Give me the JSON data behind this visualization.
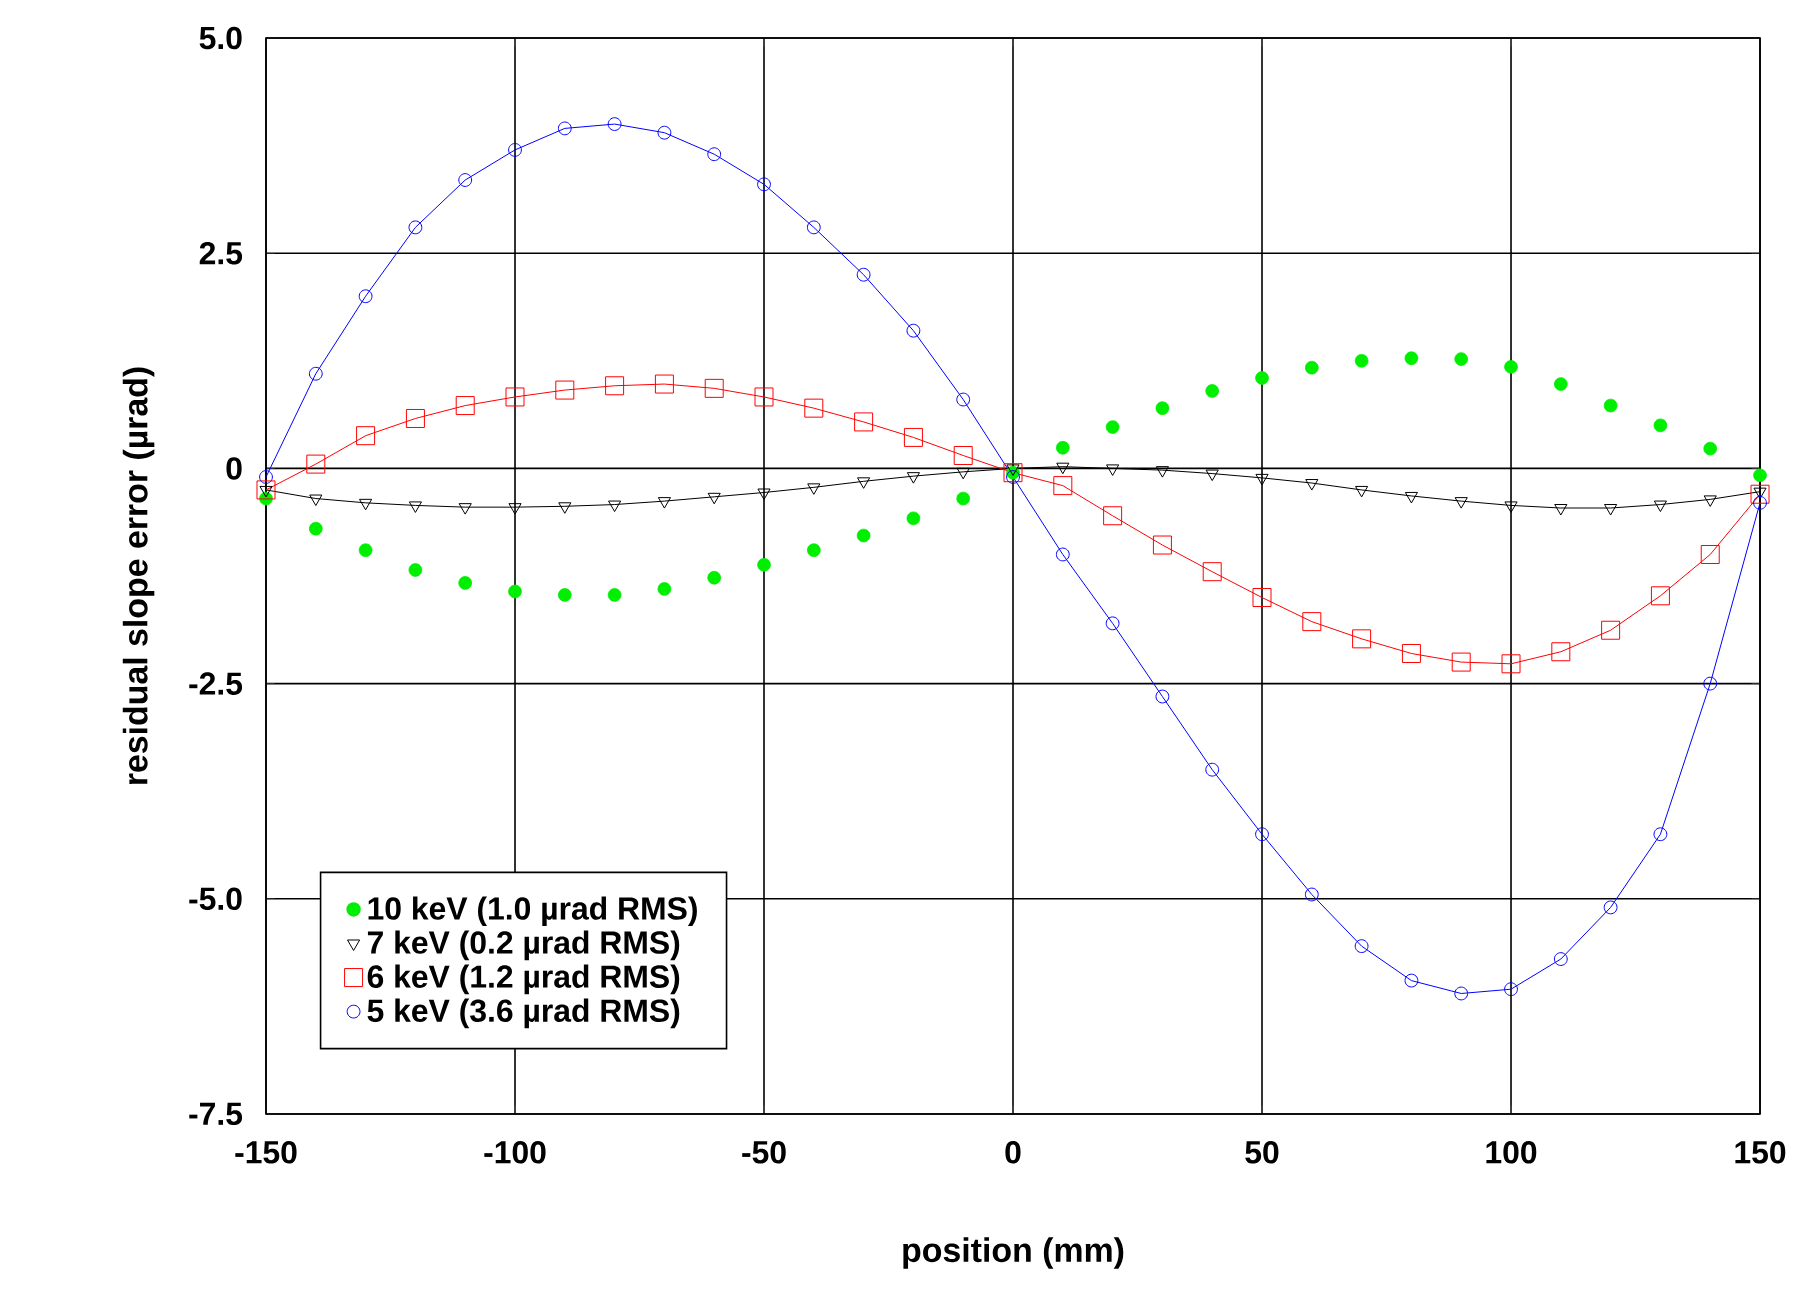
{
  "chart_data": {
    "type": "line",
    "xlabel": "position (mm)",
    "ylabel": "residual slope error (µrad)",
    "x": [
      -150,
      -140,
      -130,
      -120,
      -110,
      -100,
      -90,
      -80,
      -70,
      -60,
      -50,
      -40,
      -30,
      -20,
      -10,
      0,
      10,
      20,
      30,
      40,
      50,
      60,
      70,
      80,
      90,
      100,
      110,
      120,
      130,
      140,
      150
    ],
    "series": [
      {
        "name": "10 keV (1.0 µrad RMS)",
        "type": "scatter",
        "marker": "circle",
        "color": "#00ee00",
        "values": [
          -0.35,
          -0.7,
          -0.95,
          -1.18,
          -1.33,
          -1.43,
          -1.47,
          -1.47,
          -1.4,
          -1.27,
          -1.12,
          -0.95,
          -0.78,
          -0.58,
          -0.35,
          -0.05,
          0.24,
          0.48,
          0.7,
          0.9,
          1.05,
          1.17,
          1.25,
          1.28,
          1.27,
          1.18,
          0.98,
          0.73,
          0.5,
          0.23,
          -0.08
        ]
      },
      {
        "name": "7 keV (0.2 µrad RMS)",
        "marker": "triangle",
        "color": "#000000",
        "values": [
          -0.25,
          -0.35,
          -0.4,
          -0.43,
          -0.45,
          -0.45,
          -0.44,
          -0.42,
          -0.38,
          -0.33,
          -0.28,
          -0.22,
          -0.15,
          -0.09,
          -0.04,
          0.0,
          0.02,
          0.0,
          -0.02,
          -0.06,
          -0.11,
          -0.17,
          -0.25,
          -0.32,
          -0.38,
          -0.43,
          -0.46,
          -0.46,
          -0.42,
          -0.36,
          -0.27
        ]
      },
      {
        "name": "6 keV (1.2 µrad RMS)",
        "marker": "square",
        "color": "#ff0000",
        "values": [
          -0.25,
          0.05,
          0.38,
          0.58,
          0.73,
          0.83,
          0.91,
          0.96,
          0.98,
          0.93,
          0.83,
          0.7,
          0.54,
          0.36,
          0.15,
          -0.05,
          -0.2,
          -0.55,
          -0.89,
          -1.2,
          -1.5,
          -1.78,
          -1.98,
          -2.15,
          -2.25,
          -2.27,
          -2.13,
          -1.88,
          -1.48,
          -1.0,
          -0.3
        ]
      },
      {
        "name": "5 keV (3.6 µrad RMS)",
        "marker": "circle",
        "color": "#0000ff",
        "values": [
          -0.1,
          1.1,
          2.0,
          2.8,
          3.35,
          3.7,
          3.95,
          4.0,
          3.9,
          3.65,
          3.3,
          2.8,
          2.25,
          1.6,
          0.8,
          -0.1,
          -1.0,
          -1.8,
          -2.65,
          -3.5,
          -4.25,
          -4.95,
          -5.55,
          -5.95,
          -6.1,
          -6.05,
          -5.7,
          -5.1,
          -4.25,
          -2.5,
          -0.4
        ]
      }
    ],
    "xlim": [
      -150,
      150
    ],
    "xticks": [
      -150,
      -100,
      -50,
      0,
      50,
      100,
      150
    ],
    "ylim": [
      -7.5,
      5
    ],
    "yticks": [
      {
        "value": -7.5,
        "label": "-7.5"
      },
      {
        "value": -5,
        "label": "-5.0"
      },
      {
        "value": -2.5,
        "label": "-2.5"
      },
      0,
      2.5,
      {
        "value": 5,
        "label": "5.0"
      }
    ],
    "grid": true,
    "legend": "bottom left"
  }
}
